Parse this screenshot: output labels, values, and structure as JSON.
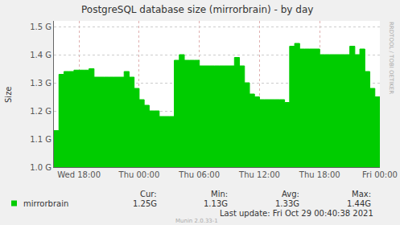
{
  "chart_data": {
    "type": "area",
    "title": "PostgreSQL database size (mirrorbrain) - by day",
    "y_label": "Size",
    "categories": [
      null,
      null,
      null,
      null,
      null,
      "Wed 18:00",
      null,
      null,
      null,
      null,
      null,
      null,
      null,
      null,
      null,
      null,
      null,
      "Thu 00:00",
      null,
      null,
      null,
      null,
      null,
      null,
      null,
      null,
      null,
      null,
      null,
      "Thu 06:00",
      null,
      null,
      null,
      null,
      null,
      null,
      null,
      null,
      null,
      null,
      null,
      "Thu 12:00",
      null,
      null,
      null,
      null,
      null,
      null,
      null,
      null,
      null,
      null,
      null,
      "Thu 18:00",
      null,
      null,
      null,
      null,
      null,
      null,
      null,
      null,
      null,
      null,
      null,
      "Fri 00:00"
    ],
    "series": [
      {
        "name": "mirrorbrain",
        "color": "#00cc00",
        "values": [
          1.13,
          1.33,
          1.34,
          1.34,
          1.345,
          1.345,
          1.345,
          1.35,
          1.32,
          1.32,
          1.32,
          1.32,
          1.32,
          1.32,
          1.34,
          1.32,
          1.28,
          1.24,
          1.22,
          1.2,
          1.2,
          1.18,
          1.18,
          1.18,
          1.38,
          1.4,
          1.38,
          1.38,
          1.38,
          1.36,
          1.36,
          1.36,
          1.36,
          1.36,
          1.36,
          1.36,
          1.39,
          1.36,
          1.3,
          1.26,
          1.25,
          1.24,
          1.24,
          1.24,
          1.24,
          1.24,
          1.23,
          1.43,
          1.44,
          1.42,
          1.42,
          1.42,
          1.42,
          1.4,
          1.4,
          1.4,
          1.4,
          1.4,
          1.4,
          1.43,
          1.4,
          1.42,
          1.34,
          1.28,
          1.25,
          1.25
        ]
      }
    ],
    "ylim": [
      1.0,
      1.52
    ],
    "yticks": [
      {
        "value": 1.0,
        "label": "1.0 G"
      },
      {
        "value": 1.1,
        "label": "1.1 G"
      },
      {
        "value": 1.2,
        "label": "1.2 G"
      },
      {
        "value": 1.3,
        "label": "1.3 G"
      },
      {
        "value": 1.4,
        "label": "1.4 G"
      },
      {
        "value": 1.5,
        "label": "1.5 G"
      }
    ],
    "grid": true,
    "stats": {
      "headers": [
        "Cur:",
        "Min:",
        "Avg:",
        "Max:"
      ],
      "values": [
        {
          "value": 1.25,
          "label": "1.25G"
        },
        {
          "value": 1.13,
          "label": "1.13G"
        },
        {
          "value": 1.33,
          "label": "1.33G"
        },
        {
          "value": 1.44,
          "label": "1.44G"
        }
      ]
    },
    "footer": "Last update: Fri Oct 29 00:40:38 2021",
    "credit": "Munin 2.0.33-1",
    "watermark": "RRDTOOL / TOBI OETIKER"
  }
}
